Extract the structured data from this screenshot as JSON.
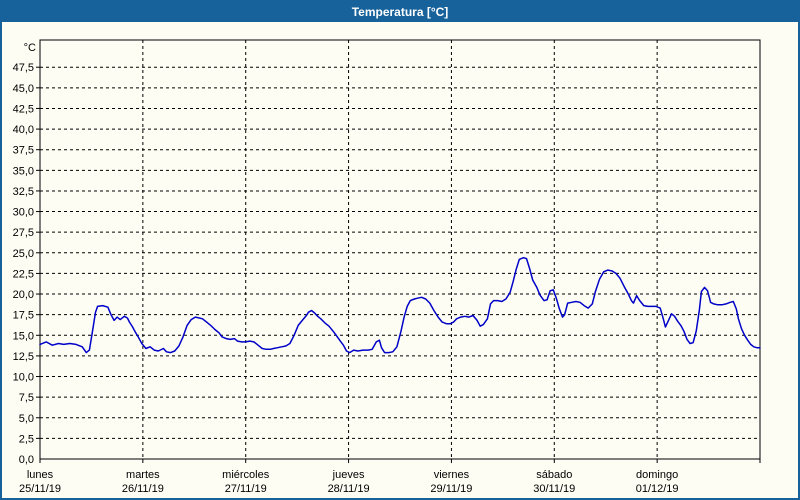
{
  "window": {
    "title": "Temperatura [°C]"
  },
  "colors": {
    "titlebar_bg": "#17629B",
    "titlebar_text": "#FFFFFF",
    "window_border": "#17629B",
    "panel_bg": "#FDFDF4",
    "plot_frame": "#000000",
    "grid": "#000000",
    "text": "#000000",
    "line": "#0000C8"
  },
  "chart_data": {
    "type": "line",
    "title": "Temperatura [°C]",
    "grid": "dashed",
    "legend": "none",
    "y_axis": {
      "unit_label": "°C",
      "min": 0,
      "max": 47.5,
      "step": 2.5,
      "plot_top_value": 50.8,
      "decimal_separator": ",",
      "tick_labels": [
        "0,0",
        "2,5",
        "5,0",
        "7,5",
        "10,0",
        "12,5",
        "15,0",
        "17,5",
        "20,0",
        "22,5",
        "25,0",
        "27,5",
        "30,0",
        "32,5",
        "35,0",
        "37,5",
        "40,0",
        "42,5",
        "45,0",
        "47,5"
      ]
    },
    "x_axis": {
      "span_days": 7,
      "days": [
        {
          "name": "lunes",
          "date": "25/11/19"
        },
        {
          "name": "martes",
          "date": "26/11/19"
        },
        {
          "name": "miércoles",
          "date": "27/11/19"
        },
        {
          "name": "jueves",
          "date": "28/11/19"
        },
        {
          "name": "viernes",
          "date": "29/11/19"
        },
        {
          "name": "sábado",
          "date": "30/11/19"
        },
        {
          "name": "domingo",
          "date": "01/12/19"
        }
      ]
    },
    "series": [
      {
        "name": "Temperatura",
        "color": "#0000C8",
        "x_unit": "days_since_start",
        "points": [
          [
            0.0,
            13.9
          ],
          [
            0.06,
            14.2
          ],
          [
            0.12,
            13.8
          ],
          [
            0.18,
            14.0
          ],
          [
            0.23,
            13.9
          ],
          [
            0.29,
            14.0
          ],
          [
            0.35,
            13.9
          ],
          [
            0.41,
            13.6
          ],
          [
            0.45,
            12.9
          ],
          [
            0.48,
            13.2
          ],
          [
            0.51,
            15.5
          ],
          [
            0.54,
            17.8
          ],
          [
            0.56,
            18.5
          ],
          [
            0.61,
            18.6
          ],
          [
            0.66,
            18.4
          ],
          [
            0.69,
            17.5
          ],
          [
            0.72,
            16.8
          ],
          [
            0.75,
            17.2
          ],
          [
            0.78,
            16.9
          ],
          [
            0.82,
            17.3
          ],
          [
            0.85,
            17.1
          ],
          [
            0.87,
            16.6
          ],
          [
            0.9,
            16.0
          ],
          [
            0.93,
            15.3
          ],
          [
            0.96,
            14.7
          ],
          [
            0.99,
            14.0
          ],
          [
            1.03,
            13.4
          ],
          [
            1.07,
            13.6
          ],
          [
            1.11,
            13.2
          ],
          [
            1.15,
            13.1
          ],
          [
            1.2,
            13.4
          ],
          [
            1.23,
            13.0
          ],
          [
            1.27,
            12.9
          ],
          [
            1.31,
            13.1
          ],
          [
            1.35,
            13.7
          ],
          [
            1.39,
            14.8
          ],
          [
            1.43,
            16.2
          ],
          [
            1.47,
            16.9
          ],
          [
            1.51,
            17.2
          ],
          [
            1.55,
            17.1
          ],
          [
            1.58,
            17.0
          ],
          [
            1.62,
            16.6
          ],
          [
            1.66,
            16.2
          ],
          [
            1.7,
            15.7
          ],
          [
            1.74,
            15.3
          ],
          [
            1.77,
            14.8
          ],
          [
            1.81,
            14.6
          ],
          [
            1.85,
            14.5
          ],
          [
            1.89,
            14.6
          ],
          [
            1.92,
            14.3
          ],
          [
            1.96,
            14.2
          ],
          [
            2.0,
            14.2
          ],
          [
            2.04,
            14.3
          ],
          [
            2.08,
            14.2
          ],
          [
            2.12,
            13.8
          ],
          [
            2.16,
            13.4
          ],
          [
            2.2,
            13.3
          ],
          [
            2.24,
            13.3
          ],
          [
            2.27,
            13.4
          ],
          [
            2.31,
            13.5
          ],
          [
            2.35,
            13.6
          ],
          [
            2.39,
            13.7
          ],
          [
            2.43,
            14.0
          ],
          [
            2.47,
            15.0
          ],
          [
            2.51,
            16.2
          ],
          [
            2.55,
            16.8
          ],
          [
            2.59,
            17.4
          ],
          [
            2.61,
            17.8
          ],
          [
            2.64,
            18.0
          ],
          [
            2.67,
            17.7
          ],
          [
            2.7,
            17.3
          ],
          [
            2.73,
            17.0
          ],
          [
            2.77,
            16.5
          ],
          [
            2.81,
            16.1
          ],
          [
            2.85,
            15.5
          ],
          [
            2.88,
            15.0
          ],
          [
            2.92,
            14.3
          ],
          [
            2.95,
            13.8
          ],
          [
            2.98,
            13.1
          ],
          [
            3.01,
            12.9
          ],
          [
            3.05,
            13.2
          ],
          [
            3.09,
            13.1
          ],
          [
            3.14,
            13.2
          ],
          [
            3.19,
            13.2
          ],
          [
            3.23,
            13.3
          ],
          [
            3.27,
            14.2
          ],
          [
            3.3,
            14.4
          ],
          [
            3.32,
            13.5
          ],
          [
            3.35,
            12.9
          ],
          [
            3.39,
            12.9
          ],
          [
            3.43,
            13.0
          ],
          [
            3.47,
            13.6
          ],
          [
            3.51,
            15.5
          ],
          [
            3.54,
            17.2
          ],
          [
            3.57,
            18.5
          ],
          [
            3.6,
            19.2
          ],
          [
            3.64,
            19.4
          ],
          [
            3.67,
            19.5
          ],
          [
            3.71,
            19.6
          ],
          [
            3.75,
            19.4
          ],
          [
            3.79,
            18.9
          ],
          [
            3.83,
            18.0
          ],
          [
            3.87,
            17.2
          ],
          [
            3.91,
            16.6
          ],
          [
            3.95,
            16.4
          ],
          [
            3.99,
            16.4
          ],
          [
            4.02,
            16.6
          ],
          [
            4.05,
            17.0
          ],
          [
            4.09,
            17.2
          ],
          [
            4.13,
            17.3
          ],
          [
            4.17,
            17.2
          ],
          [
            4.21,
            17.4
          ],
          [
            4.25,
            16.8
          ],
          [
            4.28,
            16.1
          ],
          [
            4.31,
            16.3
          ],
          [
            4.35,
            17.0
          ],
          [
            4.38,
            18.8
          ],
          [
            4.41,
            19.2
          ],
          [
            4.45,
            19.2
          ],
          [
            4.49,
            19.1
          ],
          [
            4.53,
            19.4
          ],
          [
            4.57,
            20.2
          ],
          [
            4.6,
            21.5
          ],
          [
            4.63,
            23.0
          ],
          [
            4.66,
            24.2
          ],
          [
            4.7,
            24.4
          ],
          [
            4.73,
            24.3
          ],
          [
            4.76,
            23.1
          ],
          [
            4.79,
            21.7
          ],
          [
            4.83,
            20.8
          ],
          [
            4.86,
            19.9
          ],
          [
            4.9,
            19.2
          ],
          [
            4.93,
            19.3
          ],
          [
            4.96,
            20.4
          ],
          [
            4.99,
            20.5
          ],
          [
            5.02,
            19.5
          ],
          [
            5.05,
            18.2
          ],
          [
            5.08,
            17.2
          ],
          [
            5.1,
            17.5
          ],
          [
            5.13,
            18.9
          ],
          [
            5.17,
            19.0
          ],
          [
            5.21,
            19.1
          ],
          [
            5.25,
            19.0
          ],
          [
            5.29,
            18.6
          ],
          [
            5.33,
            18.3
          ],
          [
            5.37,
            18.8
          ],
          [
            5.4,
            20.3
          ],
          [
            5.44,
            21.8
          ],
          [
            5.48,
            22.7
          ],
          [
            5.52,
            22.9
          ],
          [
            5.56,
            22.8
          ],
          [
            5.6,
            22.5
          ],
          [
            5.64,
            21.9
          ],
          [
            5.68,
            20.9
          ],
          [
            5.72,
            20.0
          ],
          [
            5.75,
            19.2
          ],
          [
            5.77,
            18.9
          ],
          [
            5.8,
            19.8
          ],
          [
            5.83,
            19.2
          ],
          [
            5.87,
            18.6
          ],
          [
            5.91,
            18.5
          ],
          [
            5.95,
            18.5
          ],
          [
            5.99,
            18.5
          ],
          [
            6.03,
            18.3
          ],
          [
            6.06,
            17.0
          ],
          [
            6.08,
            16.0
          ],
          [
            6.11,
            16.8
          ],
          [
            6.14,
            17.6
          ],
          [
            6.17,
            17.3
          ],
          [
            6.2,
            16.7
          ],
          [
            6.23,
            16.2
          ],
          [
            6.26,
            15.5
          ],
          [
            6.29,
            14.5
          ],
          [
            6.32,
            14.0
          ],
          [
            6.35,
            14.1
          ],
          [
            6.38,
            15.5
          ],
          [
            6.41,
            18.0
          ],
          [
            6.43,
            20.3
          ],
          [
            6.46,
            20.8
          ],
          [
            6.49,
            20.4
          ],
          [
            6.52,
            19.0
          ],
          [
            6.55,
            18.8
          ],
          [
            6.59,
            18.7
          ],
          [
            6.63,
            18.7
          ],
          [
            6.67,
            18.8
          ],
          [
            6.71,
            19.0
          ],
          [
            6.74,
            19.1
          ],
          [
            6.77,
            18.2
          ],
          [
            6.79,
            17.0
          ],
          [
            6.82,
            15.8
          ],
          [
            6.85,
            15.0
          ],
          [
            6.88,
            14.4
          ],
          [
            6.91,
            13.9
          ],
          [
            6.94,
            13.6
          ],
          [
            6.97,
            13.5
          ],
          [
            7.0,
            13.5
          ]
        ]
      }
    ]
  }
}
